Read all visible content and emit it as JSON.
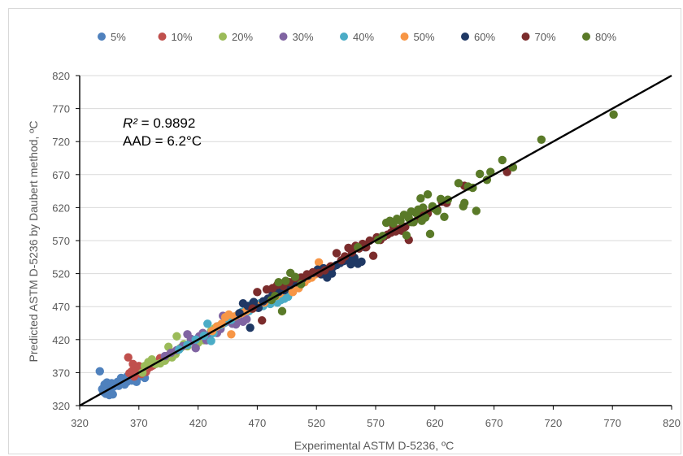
{
  "chart_data": {
    "type": "scatter",
    "xlabel": "Experimental  ASTM D-5236, ºC",
    "ylabel": "Predicted ASTM D-5236 by Daubert method, ºC",
    "xlim": [
      320,
      820
    ],
    "ylim": [
      320,
      820
    ],
    "x_ticks": [
      "320",
      "370",
      "420",
      "470",
      "520",
      "570",
      "620",
      "670",
      "720",
      "770",
      "820"
    ],
    "y_ticks": [
      "320",
      "370",
      "420",
      "470",
      "520",
      "570",
      "620",
      "670",
      "720",
      "770",
      "820"
    ],
    "grid": "horizontal",
    "legend_position": "top",
    "annotation": {
      "r2_symbol": "R²",
      "r2_rest": " = 0.9892",
      "aad": "AAD = 6.2°C"
    },
    "parity_line": {
      "from": [
        320,
        320
      ],
      "to": [
        820,
        820
      ],
      "color": "#000000"
    },
    "series": [
      {
        "name": "5%",
        "color": "#4F81BD",
        "points": [
          [
            337,
            372
          ],
          [
            339,
            345
          ],
          [
            340,
            341
          ],
          [
            341,
            352
          ],
          [
            342,
            338
          ],
          [
            343,
            355
          ],
          [
            344,
            347
          ],
          [
            345,
            336
          ],
          [
            346,
            343
          ],
          [
            347,
            354
          ],
          [
            348,
            337
          ],
          [
            349,
            349
          ],
          [
            350,
            352
          ],
          [
            352,
            356
          ],
          [
            353,
            350
          ],
          [
            355,
            362
          ],
          [
            356,
            357
          ],
          [
            358,
            352
          ],
          [
            360,
            356
          ],
          [
            362,
            362
          ],
          [
            364,
            358
          ],
          [
            366,
            360
          ],
          [
            368,
            356
          ],
          [
            370,
            364
          ],
          [
            373,
            366
          ],
          [
            375,
            362
          ],
          [
            358,
            360
          ],
          [
            360,
            364
          ]
        ]
      },
      {
        "name": "10%",
        "color": "#C0504D",
        "points": [
          [
            361,
            393
          ],
          [
            362,
            369
          ],
          [
            364,
            372
          ],
          [
            366,
            364
          ],
          [
            367,
            379
          ],
          [
            369,
            370
          ],
          [
            371,
            375
          ],
          [
            372,
            368
          ],
          [
            374,
            373
          ],
          [
            376,
            371
          ],
          [
            378,
            377
          ],
          [
            380,
            379
          ],
          [
            382,
            381
          ],
          [
            384,
            383
          ],
          [
            386,
            386
          ],
          [
            388,
            392
          ],
          [
            390,
            389
          ],
          [
            393,
            391
          ],
          [
            395,
            396
          ],
          [
            398,
            399
          ],
          [
            400,
            401
          ],
          [
            365,
            383
          ],
          [
            370,
            380
          ]
        ]
      },
      {
        "name": "20%",
        "color": "#9BBB59",
        "points": [
          [
            373,
            370
          ],
          [
            375,
            380
          ],
          [
            378,
            386
          ],
          [
            381,
            390
          ],
          [
            384,
            383
          ],
          [
            388,
            384
          ],
          [
            392,
            388
          ],
          [
            395,
            409
          ],
          [
            398,
            393
          ],
          [
            401,
            398
          ],
          [
            402,
            425
          ],
          [
            405,
            407
          ],
          [
            408,
            413
          ],
          [
            411,
            410
          ],
          [
            414,
            419
          ],
          [
            417,
            416
          ],
          [
            420,
            421
          ],
          [
            423,
            423
          ],
          [
            425,
            419
          ],
          [
            428,
            424
          ],
          [
            431,
            433
          ],
          [
            434,
            437
          ],
          [
            420,
            415
          ]
        ]
      },
      {
        "name": "30%",
        "color": "#8064A2",
        "points": [
          [
            392,
            395
          ],
          [
            397,
            400
          ],
          [
            402,
            404
          ],
          [
            407,
            410
          ],
          [
            411,
            428
          ],
          [
            414,
            421
          ],
          [
            416,
            417
          ],
          [
            418,
            407
          ],
          [
            421,
            425
          ],
          [
            424,
            430
          ],
          [
            427,
            419
          ],
          [
            430,
            427
          ],
          [
            433,
            433
          ],
          [
            436,
            430
          ],
          [
            439,
            436
          ],
          [
            441,
            456
          ],
          [
            443,
            446
          ],
          [
            446,
            448
          ],
          [
            449,
            444
          ],
          [
            452,
            443
          ],
          [
            455,
            449
          ],
          [
            458,
            447
          ],
          [
            461,
            451
          ]
        ]
      },
      {
        "name": "40%",
        "color": "#4BACC6",
        "points": [
          [
            404,
            405
          ],
          [
            411,
            412
          ],
          [
            418,
            420
          ],
          [
            425,
            426
          ],
          [
            428,
            444
          ],
          [
            431,
            418
          ],
          [
            433,
            430
          ],
          [
            436,
            440
          ],
          [
            439,
            442
          ],
          [
            442,
            445
          ],
          [
            445,
            451
          ],
          [
            448,
            450
          ],
          [
            451,
            455
          ],
          [
            454,
            458
          ],
          [
            457,
            462
          ],
          [
            460,
            465
          ],
          [
            463,
            463
          ],
          [
            466,
            475
          ],
          [
            469,
            469
          ],
          [
            472,
            475
          ],
          [
            475,
            471
          ],
          [
            478,
            478
          ],
          [
            481,
            474
          ],
          [
            484,
            478
          ],
          [
            487,
            476
          ],
          [
            490,
            480
          ],
          [
            493,
            482
          ],
          [
            496,
            485
          ]
        ]
      },
      {
        "name": "50%",
        "color": "#F79646",
        "points": [
          [
            432,
            433
          ],
          [
            436,
            440
          ],
          [
            440,
            444
          ],
          [
            443,
            454
          ],
          [
            446,
            458
          ],
          [
            448,
            428
          ],
          [
            451,
            455
          ],
          [
            454,
            458
          ],
          [
            457,
            460
          ],
          [
            461,
            464
          ],
          [
            466,
            467
          ],
          [
            471,
            471
          ],
          [
            476,
            476
          ],
          [
            481,
            482
          ],
          [
            486,
            486
          ],
          [
            489,
            490
          ],
          [
            492,
            494
          ],
          [
            495,
            497
          ],
          [
            498,
            500
          ],
          [
            501,
            502
          ],
          [
            504,
            505
          ],
          [
            507,
            509
          ],
          [
            510,
            507
          ],
          [
            513,
            512
          ],
          [
            516,
            514
          ],
          [
            519,
            519
          ],
          [
            522,
            537
          ],
          [
            524,
            522
          ],
          [
            527,
            526
          ],
          [
            530,
            528
          ],
          [
            533,
            531
          ],
          [
            500,
            492
          ],
          [
            505,
            498
          ]
        ]
      },
      {
        "name": "60%",
        "color": "#1F3864",
        "points": [
          [
            455,
            460
          ],
          [
            458,
            475
          ],
          [
            462,
            471
          ],
          [
            464,
            438
          ],
          [
            467,
            477
          ],
          [
            471,
            468
          ],
          [
            475,
            478
          ],
          [
            479,
            482
          ],
          [
            483,
            488
          ],
          [
            488,
            492
          ],
          [
            493,
            495
          ],
          [
            498,
            503
          ],
          [
            503,
            507
          ],
          [
            508,
            512
          ],
          [
            513,
            517
          ],
          [
            517,
            521
          ],
          [
            521,
            526
          ],
          [
            524,
            519
          ],
          [
            526,
            528
          ],
          [
            529,
            514
          ],
          [
            531,
            522
          ],
          [
            534,
            530
          ],
          [
            537,
            533
          ],
          [
            540,
            536
          ],
          [
            543,
            539
          ],
          [
            546,
            542
          ],
          [
            549,
            534
          ],
          [
            552,
            544
          ],
          [
            555,
            535
          ],
          [
            558,
            538
          ],
          [
            561,
            560
          ],
          [
            529,
            525
          ],
          [
            533,
            520
          ]
        ]
      },
      {
        "name": "70%",
        "color": "#7B2C2C",
        "points": [
          [
            466,
            467
          ],
          [
            470,
            492
          ],
          [
            474,
            449
          ],
          [
            478,
            496
          ],
          [
            483,
            498
          ],
          [
            487,
            503
          ],
          [
            492,
            501
          ],
          [
            497,
            507
          ],
          [
            502,
            513
          ],
          [
            507,
            514
          ],
          [
            512,
            519
          ],
          [
            517,
            522
          ],
          [
            522,
            521
          ],
          [
            527,
            525
          ],
          [
            532,
            531
          ],
          [
            537,
            551
          ],
          [
            541,
            540
          ],
          [
            544,
            546
          ],
          [
            547,
            559
          ],
          [
            550,
            552
          ],
          [
            553,
            562
          ],
          [
            556,
            558
          ],
          [
            559,
            565
          ],
          [
            562,
            560
          ],
          [
            565,
            570
          ],
          [
            568,
            547
          ],
          [
            571,
            575
          ],
          [
            574,
            571
          ],
          [
            577,
            576
          ],
          [
            580,
            579
          ],
          [
            583,
            582
          ],
          [
            587,
            584
          ],
          [
            591,
            588
          ],
          [
            595,
            591
          ],
          [
            598,
            571
          ],
          [
            602,
            598
          ],
          [
            606,
            604
          ],
          [
            610,
            609
          ],
          [
            614,
            611
          ],
          [
            618,
            620
          ],
          [
            622,
            617
          ],
          [
            626,
            629
          ],
          [
            630,
            627
          ],
          [
            645,
            653
          ],
          [
            681,
            674
          ],
          [
            585,
            592
          ],
          [
            592,
            585
          ]
        ]
      },
      {
        "name": "80%",
        "color": "#5A7A28",
        "points": [
          [
            482,
            480
          ],
          [
            485,
            486
          ],
          [
            488,
            507
          ],
          [
            491,
            463
          ],
          [
            494,
            509
          ],
          [
            498,
            521
          ],
          [
            502,
            515
          ],
          [
            507,
            504
          ],
          [
            555,
            560
          ],
          [
            572,
            571
          ],
          [
            576,
            577
          ],
          [
            579,
            597
          ],
          [
            582,
            600
          ],
          [
            585,
            596
          ],
          [
            588,
            603
          ],
          [
            591,
            600
          ],
          [
            594,
            609
          ],
          [
            596,
            578
          ],
          [
            598,
            604
          ],
          [
            600,
            614
          ],
          [
            602,
            598
          ],
          [
            604,
            612
          ],
          [
            606,
            617
          ],
          [
            608,
            634
          ],
          [
            610,
            620
          ],
          [
            612,
            605
          ],
          [
            614,
            640
          ],
          [
            616,
            580
          ],
          [
            618,
            622
          ],
          [
            620,
            618
          ],
          [
            622,
            615
          ],
          [
            625,
            633
          ],
          [
            628,
            606
          ],
          [
            631,
            632
          ],
          [
            640,
            657
          ],
          [
            644,
            622
          ],
          [
            645,
            627
          ],
          [
            648,
            652
          ],
          [
            652,
            650
          ],
          [
            655,
            615
          ],
          [
            658,
            671
          ],
          [
            664,
            662
          ],
          [
            667,
            674
          ],
          [
            677,
            692
          ],
          [
            686,
            681
          ],
          [
            710,
            723
          ],
          [
            771,
            761
          ],
          [
            600,
            598
          ],
          [
            609,
            600
          ]
        ]
      }
    ]
  }
}
